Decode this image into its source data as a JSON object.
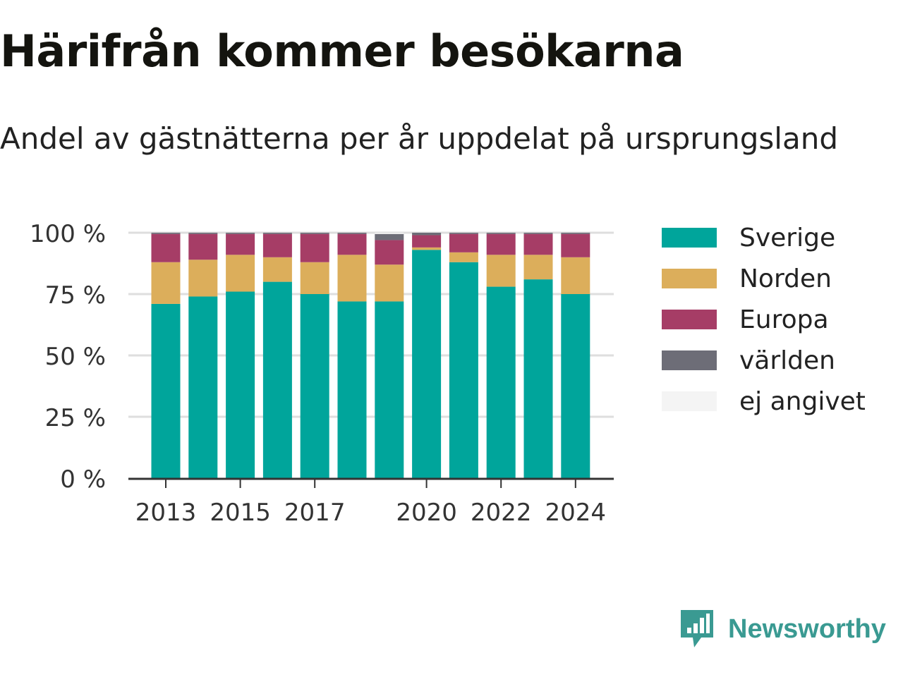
{
  "title": "Härifrån kommer besökarna",
  "subtitle": "Andel av gästnätterna per år uppdelat på ursprungsland",
  "brand": {
    "name": "Newsworthy",
    "logo_icon": "newsworthy-logo-icon"
  },
  "legend": [
    {
      "label": "Sverige",
      "color": "#00a59b"
    },
    {
      "label": "Norden",
      "color": "#dcae5b"
    },
    {
      "label": "Europa",
      "color": "#a63d66"
    },
    {
      "label": "världen",
      "color": "#6d6d77"
    },
    {
      "label": "ej angivet",
      "color": "#f4f4f4"
    }
  ],
  "chart_data": {
    "type": "bar",
    "stacked": true,
    "categories": [
      "2013",
      "2014",
      "2015",
      "2016",
      "2017",
      "2018",
      "2019",
      "2020",
      "2021",
      "2022",
      "2023",
      "2024"
    ],
    "x_tick_labels": [
      "2013",
      "2015",
      "2017",
      "2020",
      "2022",
      "2024"
    ],
    "y_tick_labels": [
      "0 %",
      "25 %",
      "50 %",
      "75 %",
      "100 %"
    ],
    "ylim": [
      0,
      100
    ],
    "grid": true,
    "legend_position": "right",
    "series": [
      {
        "name": "Sverige",
        "color": "#00a59b",
        "values": [
          71,
          74,
          76,
          80,
          75,
          72,
          72,
          93,
          88,
          78,
          81,
          75
        ]
      },
      {
        "name": "Norden",
        "color": "#dcae5b",
        "values": [
          17,
          15,
          15,
          10,
          13,
          19,
          15,
          1,
          4,
          13,
          10,
          15
        ]
      },
      {
        "name": "Europa",
        "color": "#a63d66",
        "values": [
          11.5,
          10.5,
          8.5,
          9.5,
          11.5,
          8.5,
          10,
          5,
          7.5,
          8.5,
          8.5,
          9.5
        ]
      },
      {
        "name": "världen",
        "color": "#6d6d77",
        "values": [
          0.5,
          0.5,
          0.5,
          0.5,
          0.5,
          0.5,
          2.5,
          1,
          0.5,
          0.5,
          0.5,
          0.5
        ]
      },
      {
        "name": "ej angivet",
        "color": "#f4f4f4",
        "values": [
          0,
          0,
          0,
          0,
          0,
          0,
          0.5,
          0,
          0,
          0,
          0,
          0
        ]
      }
    ]
  }
}
